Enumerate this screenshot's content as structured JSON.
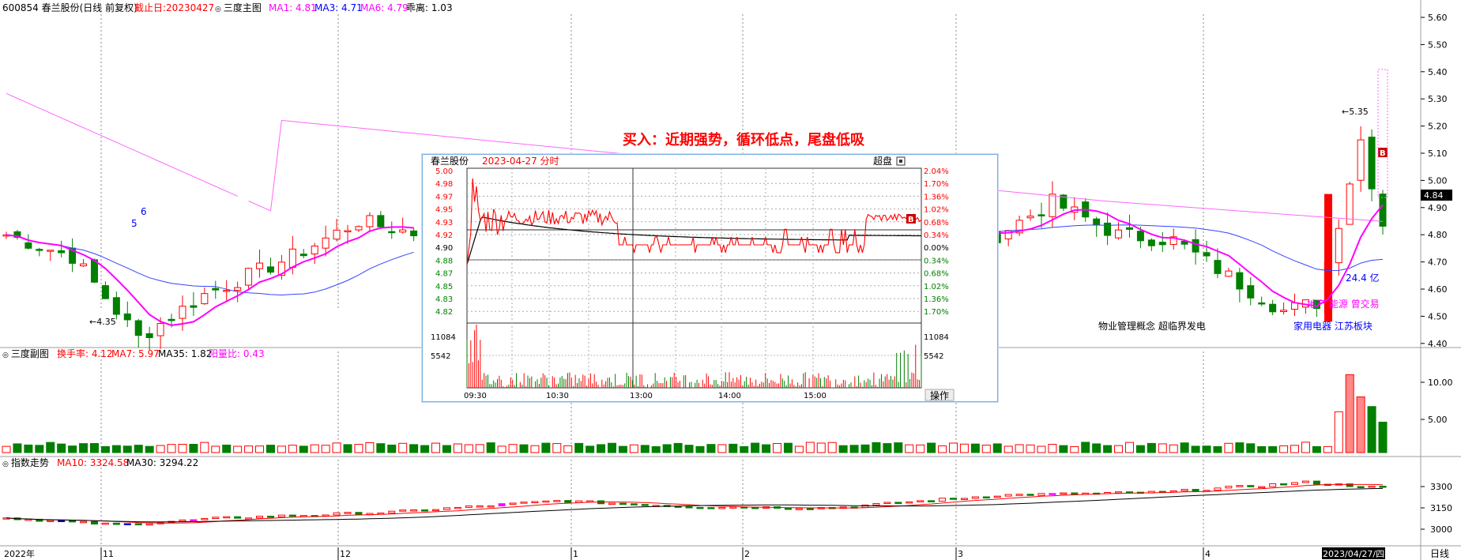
{
  "main_header": {
    "code_name": "600854 春兰股份(日线 前复权)",
    "cutoff": "截止日:20230427",
    "indicator_name": "三度主图",
    "ma1": "MA1: 4.81",
    "ma3": "MA3: 4.71",
    "ma6": "MA6: 4.79",
    "deviation": "乖离: 1.03"
  },
  "annotation": "买入：近期强势，循环低点，尾盘低吸",
  "price_labels": {
    "low": "4.35",
    "high": "5.35",
    "wave_6": "6",
    "wave_5": "5",
    "b_marker": "B"
  },
  "concepts": {
    "line1_black": "物业管理概念 超临界发电",
    "line1_magenta": "地产 能源 曾交易",
    "cap": "24.4 亿",
    "line2_blue": "家用电器    江苏板块"
  },
  "price_axis": {
    "ticks": [
      "5.60",
      "5.50",
      "5.40",
      "5.30",
      "5.20",
      "5.10",
      "5.00",
      "4.90",
      "4.80",
      "4.70",
      "4.60",
      "4.50",
      "4.40"
    ],
    "current": "4.84"
  },
  "sub_header": {
    "name": "三度副图",
    "turnover": "换手率: 4.12",
    "ma7": "MA7: 5.97",
    "ma35": "MA35: 1.82",
    "yin_yang": "阳量比: 0.43"
  },
  "sub_axis": {
    "ticks": [
      "10.00",
      "5.00"
    ]
  },
  "index_header": {
    "name": "指数走势",
    "ma10": "MA10: 3324.58",
    "ma30": "MA30: 3294.22"
  },
  "index_axis": {
    "ticks": [
      "3300",
      "3150",
      "3000"
    ]
  },
  "time_axis": {
    "labels": [
      "2022年",
      "11",
      "12",
      "1",
      "2",
      "3",
      "4",
      "2023/04/27/四"
    ],
    "corner": "日线"
  },
  "intraday": {
    "title": "春兰股份",
    "date": "2023-04-27 分时",
    "mode": "超盘",
    "b_marker": "B",
    "prices": [
      "5.00",
      "4.98",
      "4.97",
      "4.95",
      "4.93",
      "4.92",
      "4.90",
      "4.88",
      "4.87",
      "4.85",
      "4.83",
      "4.82"
    ],
    "pcts": [
      "2.04%",
      "1.70%",
      "1.36%",
      "1.02%",
      "0.68%",
      "0.34%",
      "0.00%",
      "0.34%",
      "0.68%",
      "1.02%",
      "1.36%",
      "1.70%"
    ],
    "vol_ticks": [
      "11084",
      "5542"
    ],
    "times": [
      "09:30",
      "10:30",
      "13:00",
      "14:00",
      "15:00"
    ],
    "op_button": "操作"
  },
  "colors": {
    "up": "#ff0000",
    "down": "#007f00",
    "ma_magenta": "#ff00ff",
    "ma_blue": "#0000ff",
    "annotation": "#ff0000"
  }
}
